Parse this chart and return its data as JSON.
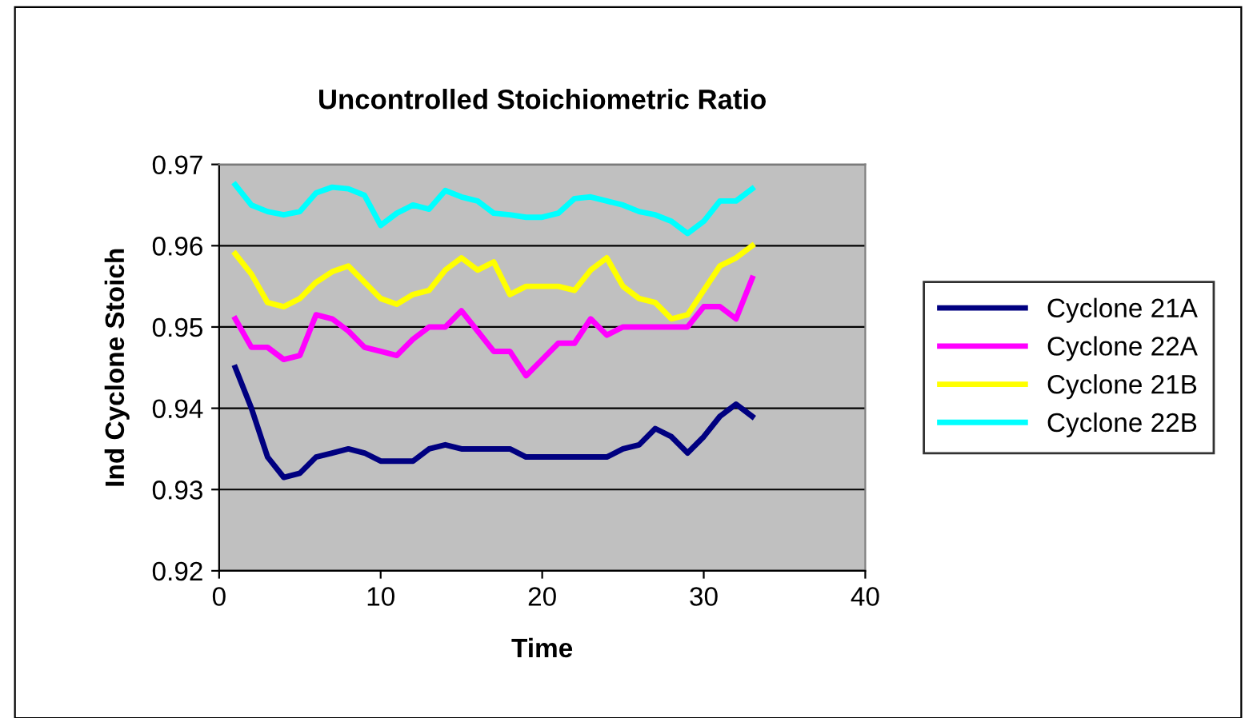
{
  "chart_data": {
    "type": "line",
    "title": "Uncontrolled Stoichiometric Ratio",
    "xlabel": "Time",
    "ylabel": "Ind Cyclone Stoich",
    "x": [
      1,
      2,
      3,
      4,
      5,
      6,
      7,
      8,
      9,
      10,
      11,
      12,
      13,
      14,
      15,
      16,
      17,
      18,
      19,
      20,
      21,
      22,
      23,
      24,
      25,
      26,
      27,
      28,
      29,
      30,
      31,
      32,
      33
    ],
    "series": [
      {
        "name": "Cyclone 21A",
        "color": "#000080",
        "values": [
          0.945,
          0.94,
          0.934,
          0.9315,
          0.932,
          0.934,
          0.9345,
          0.935,
          0.9345,
          0.9335,
          0.9335,
          0.9335,
          0.935,
          0.9355,
          0.935,
          0.935,
          0.935,
          0.935,
          0.934,
          0.934,
          0.934,
          0.934,
          0.934,
          0.934,
          0.935,
          0.9355,
          0.9375,
          0.9365,
          0.9345,
          0.9365,
          0.939,
          0.9405,
          0.939
        ]
      },
      {
        "name": "Cyclone 22A",
        "color": "#ff00ff",
        "values": [
          0.951,
          0.9475,
          0.9475,
          0.946,
          0.9465,
          0.9515,
          0.951,
          0.9495,
          0.9475,
          0.947,
          0.9465,
          0.9485,
          0.95,
          0.95,
          0.952,
          0.9495,
          0.947,
          0.947,
          0.944,
          0.946,
          0.948,
          0.948,
          0.951,
          0.949,
          0.95,
          0.95,
          0.95,
          0.95,
          0.95,
          0.9525,
          0.9525,
          0.951,
          0.956
        ]
      },
      {
        "name": "Cyclone 21B",
        "color": "#ffff00",
        "values": [
          0.959,
          0.9565,
          0.953,
          0.9525,
          0.9535,
          0.9555,
          0.9568,
          0.9575,
          0.9555,
          0.9535,
          0.9528,
          0.954,
          0.9545,
          0.957,
          0.9585,
          0.957,
          0.958,
          0.954,
          0.955,
          0.955,
          0.955,
          0.9545,
          0.957,
          0.9585,
          0.955,
          0.9535,
          0.953,
          0.951,
          0.9515,
          0.9545,
          0.9575,
          0.9585,
          0.96
        ]
      },
      {
        "name": "Cyclone 22B",
        "color": "#00ffff",
        "values": [
          0.9675,
          0.965,
          0.9642,
          0.9638,
          0.9642,
          0.9665,
          0.9672,
          0.967,
          0.9662,
          0.9625,
          0.964,
          0.965,
          0.9645,
          0.9668,
          0.966,
          0.9655,
          0.964,
          0.9638,
          0.9635,
          0.9635,
          0.964,
          0.9658,
          0.966,
          0.9655,
          0.965,
          0.9642,
          0.9638,
          0.963,
          0.9615,
          0.963,
          0.9655,
          0.9655,
          0.967
        ]
      }
    ],
    "xlim": [
      0,
      40
    ],
    "xticks": [
      0,
      10,
      20,
      30,
      40
    ],
    "ylim": [
      0.92,
      0.97
    ],
    "yticks": [
      0.92,
      0.93,
      0.94,
      0.95,
      0.96,
      0.97
    ],
    "grid": "y",
    "legend": "right",
    "marker": "none",
    "line_style": "solid"
  }
}
